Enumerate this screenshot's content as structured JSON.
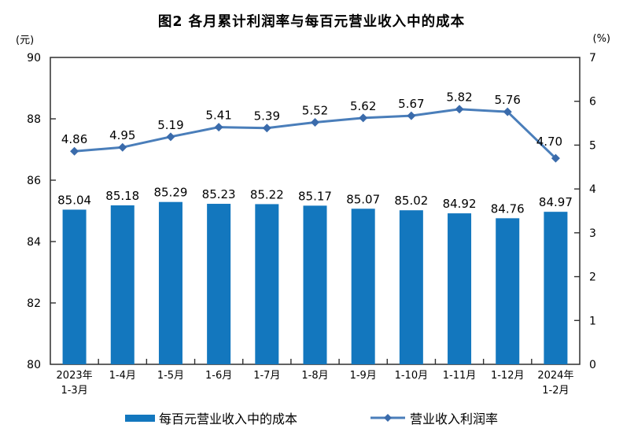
{
  "chart_data": {
    "type": "bar",
    "title": "图2 各月累计利润率与每百元营业收入中的成本",
    "categories": [
      [
        "2023年",
        "1-3月"
      ],
      [
        "1-4月"
      ],
      [
        "1-5月"
      ],
      [
        "1-6月"
      ],
      [
        "1-7月"
      ],
      [
        "1-8月"
      ],
      [
        "1-9月"
      ],
      [
        "1-10月"
      ],
      [
        "1-11月"
      ],
      [
        "1-12月"
      ],
      [
        "2024年",
        "1-2月"
      ]
    ],
    "series": [
      {
        "name": "每百元营业收入中的成本",
        "type": "bar",
        "axis": "left",
        "color": "#1377BE",
        "values": [
          85.04,
          85.18,
          85.29,
          85.23,
          85.22,
          85.17,
          85.07,
          85.02,
          84.92,
          84.76,
          84.97
        ]
      },
      {
        "name": "营业收入利润率",
        "type": "line",
        "axis": "right",
        "color": "#4A7EBA",
        "marker_color": "#3A6BAB",
        "values": [
          4.86,
          4.95,
          5.19,
          5.41,
          5.39,
          5.52,
          5.62,
          5.67,
          5.82,
          5.76,
          4.7
        ]
      }
    ],
    "axes": {
      "left": {
        "unit": "(元)",
        "min": 80,
        "max": 90,
        "ticks": [
          90,
          88,
          86,
          84,
          82,
          80
        ]
      },
      "right": {
        "unit": "(%)",
        "min": 0,
        "max": 7,
        "ticks": [
          7,
          6,
          5,
          4,
          3,
          2,
          1,
          0
        ]
      }
    },
    "grid": false,
    "legend_position": "bottom",
    "value_labels": true,
    "axis_color": "#2f2f2f",
    "text_color": "#000000"
  }
}
